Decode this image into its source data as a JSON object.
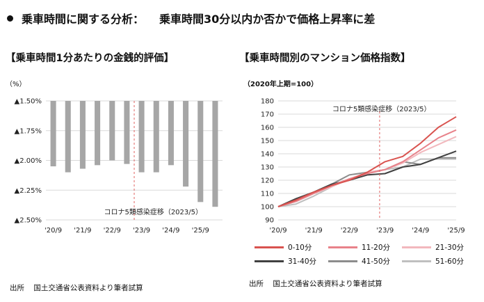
{
  "headline": {
    "left": "乗車時間に関する分析：",
    "right": "乗車時間30分以内か否かで価格上昇率に差"
  },
  "chart_data": [
    {
      "type": "bar",
      "title": "【乗車時間1分あたりの金銭的評価】",
      "unit_label": "（%）",
      "y_ticks": [
        "▲1.50%",
        "▲1.75%",
        "▲2.00%",
        "▲2.25%",
        "▲2.50%"
      ],
      "y_tick_values": [
        -1.5,
        -1.75,
        -2.0,
        -2.25,
        -2.5
      ],
      "ylim": [
        -2.5,
        -1.5
      ],
      "x_tick_labels": [
        "'20/9",
        "'21/9",
        "'22/9",
        "'23/9",
        "'24/9",
        "'25/9"
      ],
      "values": [
        -2.05,
        -2.1,
        -2.07,
        -2.04,
        -2.0,
        -2.03,
        -2.1,
        -2.1,
        -2.04,
        -2.22,
        -2.35,
        -2.39
      ],
      "bar_color": "#a6a6a6",
      "annotation": "コロナ5類感染症移（2023/5）",
      "annotation_line_color": "#e0605f"
    },
    {
      "type": "line",
      "title": "【乗車時間別のマンション価格指数】",
      "unit_label": "（2020年上期=100）",
      "ylim": [
        90,
        180
      ],
      "y_ticks": [
        90,
        100,
        110,
        120,
        130,
        140,
        150,
        160,
        170,
        180
      ],
      "x_tick_labels": [
        "'20/9",
        "'21/9",
        "'22/9",
        "'23/9",
        "'24/9",
        "'25/9"
      ],
      "annotation": "コロナ5類感染症移（2023/5）",
      "annotation_line_color": "#e0605f",
      "series": [
        {
          "name": "0-10分",
          "color": "#d9534f",
          "values": [
            100,
            105,
            111,
            116,
            120,
            126,
            134,
            138,
            148,
            160,
            168
          ]
        },
        {
          "name": "11-20分",
          "color": "#e8828a",
          "values": [
            100,
            104,
            110,
            116,
            121,
            125,
            128,
            134,
            143,
            152,
            158
          ]
        },
        {
          "name": "21-30分",
          "color": "#f2b8bd",
          "values": [
            100,
            104,
            110,
            115,
            121,
            126,
            128,
            133,
            141,
            147,
            153
          ]
        },
        {
          "name": "31-40分",
          "color": "#404040",
          "values": [
            100,
            106,
            111,
            117,
            120,
            124,
            125,
            130,
            132,
            137,
            142
          ]
        },
        {
          "name": "41-50分",
          "color": "#8c8c8c",
          "values": [
            100,
            104,
            110,
            117,
            124,
            126,
            128,
            134,
            132,
            137,
            137
          ]
        },
        {
          "name": "51-60分",
          "color": "#bfbfbf",
          "values": [
            100,
            102,
            108,
            115,
            121,
            125,
            128,
            130,
            136,
            136,
            136
          ]
        }
      ]
    }
  ],
  "source": {
    "label": "出所",
    "text": "国土交通省公表資料より筆者試算"
  }
}
